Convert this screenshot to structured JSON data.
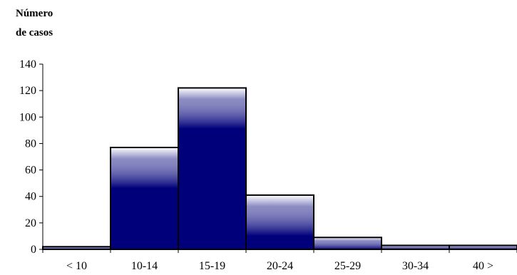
{
  "chart_data": {
    "type": "bar",
    "ylabel_lines": [
      "Número",
      "de casos"
    ],
    "xlabel": "",
    "title": "",
    "categories": [
      "< 10",
      "10-14",
      "15-19",
      "20-24",
      "25-29",
      "30-34",
      "40 >"
    ],
    "values": [
      2,
      77,
      122,
      41,
      9,
      3,
      3
    ],
    "ylim": [
      0,
      140
    ],
    "yticks": [
      0,
      20,
      40,
      60,
      80,
      100,
      120,
      140
    ],
    "grid": false,
    "legend": "none",
    "colors": {
      "bar_dark": "#00007a",
      "bar_light": "#ffffff",
      "edge": "#000000"
    }
  }
}
